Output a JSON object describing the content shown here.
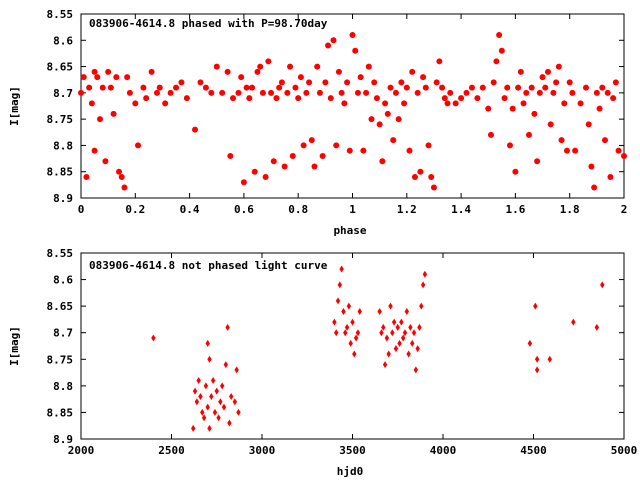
{
  "chart_data": [
    {
      "type": "scatter",
      "title": "083906-4614.8 phased with P=98.70day",
      "xlabel": "phase",
      "ylabel": "I[mag]",
      "xlim": [
        0,
        2
      ],
      "ylim": [
        8.9,
        8.55
      ],
      "y_inverted": true,
      "grid": false,
      "marker": "filled-circle",
      "color": "#ff0000",
      "xticks": [
        "0",
        "0.2",
        "0.4",
        "0.6",
        "0.8",
        "1",
        "1.2",
        "1.4",
        "1.6",
        "1.8",
        "2"
      ],
      "xtick_values": [
        0,
        0.2,
        0.4,
        0.6,
        0.8,
        1.0,
        1.2,
        1.4,
        1.6,
        1.8,
        2.0
      ],
      "yticks": [
        "8.55",
        "8.6",
        "8.65",
        "8.7",
        "8.75",
        "8.8",
        "8.85",
        "8.9"
      ],
      "ytick_values": [
        8.55,
        8.6,
        8.65,
        8.7,
        8.75,
        8.8,
        8.85,
        8.9
      ],
      "points": [
        [
          0.0,
          8.7
        ],
        [
          0.01,
          8.67
        ],
        [
          0.02,
          8.86
        ],
        [
          0.03,
          8.69
        ],
        [
          0.04,
          8.72
        ],
        [
          0.05,
          8.66
        ],
        [
          0.05,
          8.81
        ],
        [
          0.06,
          8.67
        ],
        [
          0.07,
          8.75
        ],
        [
          0.08,
          8.69
        ],
        [
          0.09,
          8.83
        ],
        [
          0.1,
          8.66
        ],
        [
          0.11,
          8.69
        ],
        [
          0.12,
          8.74
        ],
        [
          0.13,
          8.67
        ],
        [
          0.14,
          8.85
        ],
        [
          0.15,
          8.86
        ],
        [
          0.16,
          8.88
        ],
        [
          0.17,
          8.67
        ],
        [
          0.18,
          8.7
        ],
        [
          0.2,
          8.72
        ],
        [
          0.21,
          8.8
        ],
        [
          0.23,
          8.69
        ],
        [
          0.24,
          8.71
        ],
        [
          0.26,
          8.66
        ],
        [
          0.28,
          8.7
        ],
        [
          0.29,
          8.69
        ],
        [
          0.31,
          8.72
        ],
        [
          0.33,
          8.7
        ],
        [
          0.35,
          8.69
        ],
        [
          0.37,
          8.68
        ],
        [
          0.39,
          8.71
        ],
        [
          0.42,
          8.77
        ],
        [
          0.44,
          8.68
        ],
        [
          0.46,
          8.69
        ],
        [
          0.48,
          8.7
        ],
        [
          0.5,
          8.65
        ],
        [
          0.52,
          8.7
        ],
        [
          0.54,
          8.66
        ],
        [
          0.55,
          8.82
        ],
        [
          0.56,
          8.71
        ],
        [
          0.58,
          8.7
        ],
        [
          0.59,
          8.67
        ],
        [
          0.6,
          8.87
        ],
        [
          0.61,
          8.69
        ],
        [
          0.62,
          8.71
        ],
        [
          0.63,
          8.69
        ],
        [
          0.64,
          8.85
        ],
        [
          0.65,
          8.66
        ],
        [
          0.66,
          8.65
        ],
        [
          0.67,
          8.7
        ],
        [
          0.68,
          8.86
        ],
        [
          0.69,
          8.64
        ],
        [
          0.7,
          8.7
        ],
        [
          0.71,
          8.83
        ],
        [
          0.72,
          8.71
        ],
        [
          0.73,
          8.69
        ],
        [
          0.74,
          8.68
        ],
        [
          0.75,
          8.84
        ],
        [
          0.76,
          8.7
        ],
        [
          0.77,
          8.65
        ],
        [
          0.78,
          8.82
        ],
        [
          0.79,
          8.69
        ],
        [
          0.8,
          8.71
        ],
        [
          0.81,
          8.67
        ],
        [
          0.82,
          8.8
        ],
        [
          0.83,
          8.7
        ],
        [
          0.84,
          8.68
        ],
        [
          0.85,
          8.79
        ],
        [
          0.86,
          8.84
        ],
        [
          0.87,
          8.65
        ],
        [
          0.88,
          8.7
        ],
        [
          0.89,
          8.82
        ],
        [
          0.9,
          8.68
        ],
        [
          0.91,
          8.61
        ],
        [
          0.92,
          8.71
        ],
        [
          0.93,
          8.6
        ],
        [
          0.94,
          8.8
        ],
        [
          0.95,
          8.66
        ],
        [
          0.96,
          8.7
        ],
        [
          0.97,
          8.72
        ],
        [
          0.98,
          8.68
        ],
        [
          0.99,
          8.81
        ],
        [
          1.0,
          8.59
        ],
        [
          1.01,
          8.62
        ],
        [
          1.02,
          8.7
        ],
        [
          1.03,
          8.67
        ],
        [
          1.04,
          8.81
        ],
        [
          1.05,
          8.7
        ],
        [
          1.06,
          8.65
        ],
        [
          1.07,
          8.75
        ],
        [
          1.08,
          8.68
        ],
        [
          1.09,
          8.71
        ],
        [
          1.1,
          8.76
        ],
        [
          1.11,
          8.83
        ],
        [
          1.12,
          8.72
        ],
        [
          1.13,
          8.74
        ],
        [
          1.14,
          8.69
        ],
        [
          1.15,
          8.79
        ],
        [
          1.16,
          8.7
        ],
        [
          1.17,
          8.75
        ],
        [
          1.18,
          8.68
        ],
        [
          1.19,
          8.72
        ],
        [
          1.2,
          8.69
        ],
        [
          1.21,
          8.81
        ],
        [
          1.22,
          8.66
        ],
        [
          1.23,
          8.86
        ],
        [
          1.24,
          8.7
        ],
        [
          1.25,
          8.85
        ],
        [
          1.26,
          8.67
        ],
        [
          1.27,
          8.69
        ],
        [
          1.28,
          8.8
        ],
        [
          1.29,
          8.86
        ],
        [
          1.3,
          8.88
        ],
        [
          1.31,
          8.68
        ],
        [
          1.32,
          8.64
        ],
        [
          1.33,
          8.69
        ],
        [
          1.34,
          8.71
        ],
        [
          1.35,
          8.72
        ],
        [
          1.36,
          8.7
        ],
        [
          1.38,
          8.72
        ],
        [
          1.4,
          8.71
        ],
        [
          1.42,
          8.7
        ],
        [
          1.44,
          8.69
        ],
        [
          1.46,
          8.71
        ],
        [
          1.48,
          8.69
        ],
        [
          1.5,
          8.73
        ],
        [
          1.51,
          8.78
        ],
        [
          1.52,
          8.68
        ],
        [
          1.53,
          8.64
        ],
        [
          1.54,
          8.59
        ],
        [
          1.55,
          8.62
        ],
        [
          1.56,
          8.71
        ],
        [
          1.57,
          8.69
        ],
        [
          1.58,
          8.8
        ],
        [
          1.59,
          8.73
        ],
        [
          1.6,
          8.85
        ],
        [
          1.61,
          8.69
        ],
        [
          1.62,
          8.66
        ],
        [
          1.63,
          8.72
        ],
        [
          1.64,
          8.7
        ],
        [
          1.65,
          8.78
        ],
        [
          1.66,
          8.69
        ],
        [
          1.67,
          8.74
        ],
        [
          1.68,
          8.83
        ],
        [
          1.69,
          8.7
        ],
        [
          1.7,
          8.67
        ],
        [
          1.71,
          8.69
        ],
        [
          1.72,
          8.66
        ],
        [
          1.73,
          8.76
        ],
        [
          1.74,
          8.7
        ],
        [
          1.75,
          8.68
        ],
        [
          1.76,
          8.65
        ],
        [
          1.77,
          8.79
        ],
        [
          1.78,
          8.72
        ],
        [
          1.79,
          8.81
        ],
        [
          1.8,
          8.68
        ],
        [
          1.81,
          8.7
        ],
        [
          1.82,
          8.81
        ],
        [
          1.84,
          8.72
        ],
        [
          1.86,
          8.69
        ],
        [
          1.87,
          8.76
        ],
        [
          1.88,
          8.84
        ],
        [
          1.89,
          8.88
        ],
        [
          1.9,
          8.7
        ],
        [
          1.91,
          8.73
        ],
        [
          1.92,
          8.69
        ],
        [
          1.93,
          8.79
        ],
        [
          1.94,
          8.7
        ],
        [
          1.95,
          8.86
        ],
        [
          1.96,
          8.71
        ],
        [
          1.97,
          8.68
        ],
        [
          1.98,
          8.81
        ],
        [
          2.0,
          8.82
        ]
      ]
    },
    {
      "type": "scatter",
      "title": "083906-4614.8 not phased light curve",
      "xlabel": "hjd0",
      "ylabel": "I[mag]",
      "xlim": [
        2000,
        5000
      ],
      "ylim": [
        8.9,
        8.55
      ],
      "y_inverted": true,
      "grid": false,
      "marker": "diamond",
      "color": "#ff0000",
      "xticks": [
        "2000",
        "2500",
        "3000",
        "3500",
        "4000",
        "4500",
        "5000"
      ],
      "xtick_values": [
        2000,
        2500,
        3000,
        3500,
        4000,
        4500,
        5000
      ],
      "yticks": [
        "8.55",
        "8.6",
        "8.65",
        "8.7",
        "8.75",
        "8.8",
        "8.85",
        "8.9"
      ],
      "ytick_values": [
        8.55,
        8.6,
        8.65,
        8.7,
        8.75,
        8.8,
        8.85,
        8.9
      ],
      "points": [
        [
          2400,
          8.71
        ],
        [
          2620,
          8.88
        ],
        [
          2630,
          8.81
        ],
        [
          2640,
          8.83
        ],
        [
          2650,
          8.79
        ],
        [
          2660,
          8.82
        ],
        [
          2670,
          8.85
        ],
        [
          2680,
          8.86
        ],
        [
          2690,
          8.8
        ],
        [
          2700,
          8.72
        ],
        [
          2700,
          8.84
        ],
        [
          2710,
          8.75
        ],
        [
          2710,
          8.88
        ],
        [
          2720,
          8.82
        ],
        [
          2730,
          8.79
        ],
        [
          2740,
          8.85
        ],
        [
          2750,
          8.81
        ],
        [
          2760,
          8.86
        ],
        [
          2770,
          8.83
        ],
        [
          2780,
          8.8
        ],
        [
          2790,
          8.84
        ],
        [
          2800,
          8.76
        ],
        [
          2810,
          8.69
        ],
        [
          2820,
          8.87
        ],
        [
          2830,
          8.82
        ],
        [
          2850,
          8.83
        ],
        [
          2860,
          8.77
        ],
        [
          2870,
          8.85
        ],
        [
          3400,
          8.68
        ],
        [
          3410,
          8.7
        ],
        [
          3420,
          8.64
        ],
        [
          3430,
          8.61
        ],
        [
          3440,
          8.58
        ],
        [
          3450,
          8.66
        ],
        [
          3460,
          8.7
        ],
        [
          3470,
          8.69
        ],
        [
          3480,
          8.65
        ],
        [
          3490,
          8.72
        ],
        [
          3500,
          8.68
        ],
        [
          3510,
          8.74
        ],
        [
          3520,
          8.71
        ],
        [
          3530,
          8.7
        ],
        [
          3540,
          8.66
        ],
        [
          3650,
          8.66
        ],
        [
          3660,
          8.7
        ],
        [
          3670,
          8.69
        ],
        [
          3680,
          8.76
        ],
        [
          3690,
          8.71
        ],
        [
          3700,
          8.74
        ],
        [
          3710,
          8.65
        ],
        [
          3720,
          8.7
        ],
        [
          3730,
          8.68
        ],
        [
          3740,
          8.73
        ],
        [
          3750,
          8.69
        ],
        [
          3760,
          8.72
        ],
        [
          3770,
          8.68
        ],
        [
          3780,
          8.71
        ],
        [
          3790,
          8.7
        ],
        [
          3800,
          8.66
        ],
        [
          3810,
          8.74
        ],
        [
          3820,
          8.69
        ],
        [
          3830,
          8.72
        ],
        [
          3840,
          8.7
        ],
        [
          3850,
          8.77
        ],
        [
          3860,
          8.73
        ],
        [
          3870,
          8.69
        ],
        [
          3880,
          8.65
        ],
        [
          3890,
          8.61
        ],
        [
          3900,
          8.59
        ],
        [
          4480,
          8.72
        ],
        [
          4510,
          8.65
        ],
        [
          4520,
          8.75
        ],
        [
          4520,
          8.77
        ],
        [
          4590,
          8.75
        ],
        [
          4720,
          8.68
        ],
        [
          4850,
          8.69
        ],
        [
          4880,
          8.61
        ]
      ]
    }
  ]
}
